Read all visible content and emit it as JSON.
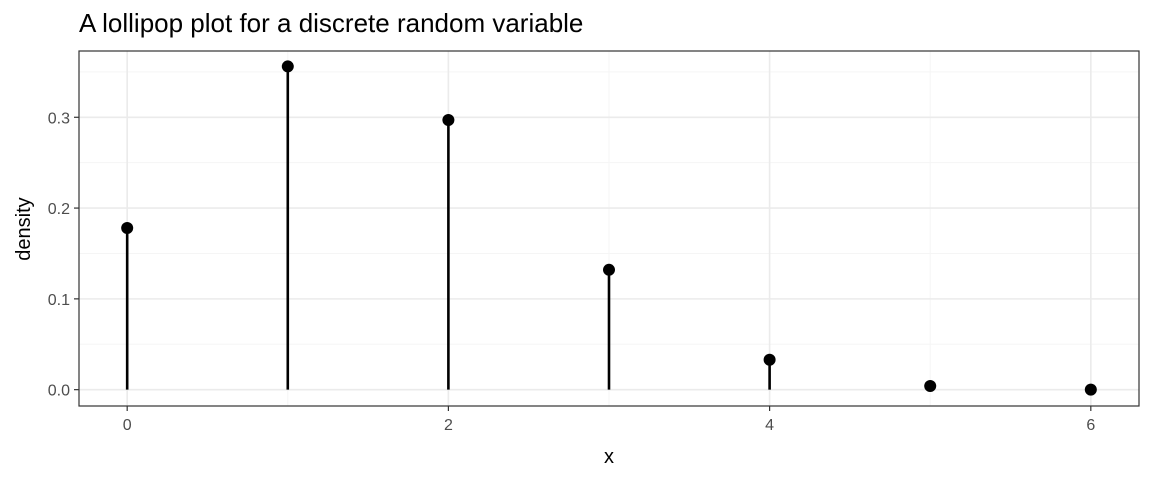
{
  "chart_data": {
    "type": "lollipop",
    "title": "A lollipop plot for a discrete random variable",
    "xlabel": "x",
    "ylabel": "density",
    "x": [
      0,
      1,
      2,
      3,
      4,
      5,
      6
    ],
    "values": [
      0.178,
      0.356,
      0.297,
      0.132,
      0.033,
      0.004,
      0.0
    ],
    "xlim": [
      -0.3,
      6.3
    ],
    "ylim": [
      -0.018,
      0.373
    ],
    "x_ticks": [
      0,
      2,
      4,
      6
    ],
    "x_tick_labels": [
      "0",
      "2",
      "4",
      "6"
    ],
    "x_minor_ticks": [
      1,
      3,
      5
    ],
    "y_ticks": [
      0.0,
      0.1,
      0.2,
      0.3
    ],
    "y_tick_labels": [
      "0.0",
      "0.1",
      "0.2",
      "0.3"
    ],
    "y_minor_ticks": [
      0.05,
      0.15,
      0.25,
      0.35
    ],
    "grid": true,
    "legend": "none",
    "colors": {
      "marks": "#000000",
      "grid_major": "#ebebeb",
      "grid_minor": "#f5f5f5",
      "panel_border": "#333333",
      "tick_text": "#4d4d4d"
    }
  }
}
